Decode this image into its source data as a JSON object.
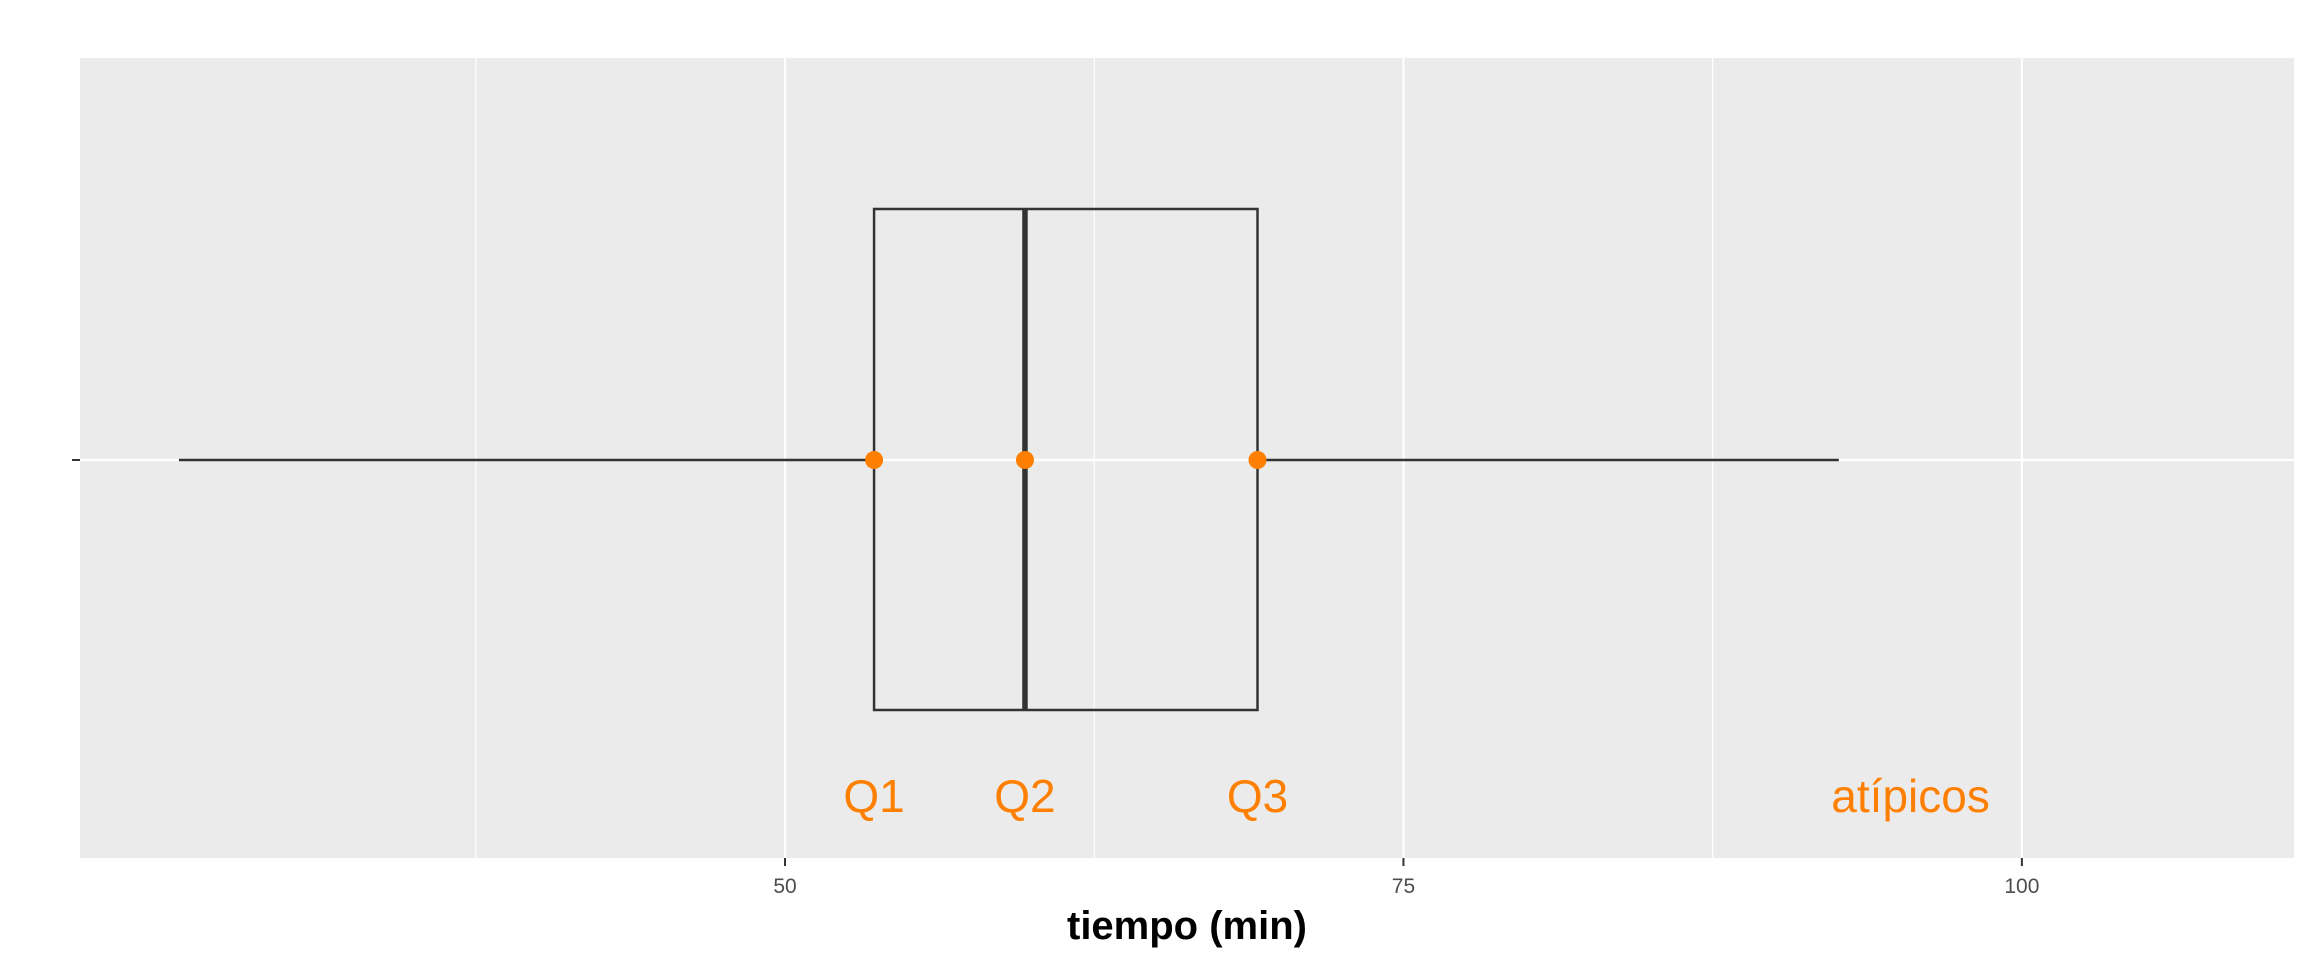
{
  "chart_data": {
    "type": "boxplot",
    "title": "",
    "xlabel": "tiempo (min)",
    "ylabel": "",
    "xlim": [
      21.5,
      111
    ],
    "x_ticks": [
      50,
      75,
      100
    ],
    "x_tick_labels": [
      "50",
      "75",
      "100"
    ],
    "grid": true,
    "box": {
      "whisker_low": 25.5,
      "q1": 53.6,
      "median": 59.7,
      "q3": 69.1,
      "whisker_high": 92.6
    },
    "highlighted_points": [
      {
        "label": "Q1",
        "x": 53.6
      },
      {
        "label": "Q2",
        "x": 59.7
      },
      {
        "label": "Q3",
        "x": 69.1
      }
    ],
    "annotations": [
      {
        "text": "Q1",
        "x": 53.6
      },
      {
        "text": "Q2",
        "x": 59.7
      },
      {
        "text": "Q3",
        "x": 69.1
      },
      {
        "text": "atípicos",
        "x": 95.5
      }
    ]
  },
  "colors": {
    "panel_background": "#ebebeb",
    "grid": "#ffffff",
    "box_line": "#333333",
    "accent": "#ff7f00"
  }
}
